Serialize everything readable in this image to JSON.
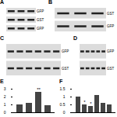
{
  "panel_letters": [
    "A",
    "B",
    "C",
    "D",
    "E",
    "F"
  ],
  "blots": [
    {
      "panel": "A",
      "rows": [
        "GFP",
        "GST",
        "GFP"
      ],
      "lanes": 3
    },
    {
      "panel": "B",
      "rows": [
        "GST",
        "GFP"
      ],
      "lanes": 3
    },
    {
      "panel": "C",
      "rows": [
        "GFP",
        "GST"
      ],
      "lanes": 6
    },
    {
      "panel": "D",
      "rows": [
        "GFP",
        "GST"
      ],
      "lanes": 5
    }
  ],
  "chart_data": [
    {
      "type": "bar",
      "panel": "E",
      "categories": [
        null,
        null,
        null,
        null
      ],
      "values": [
        1,
        1.2,
        2.6,
        0.9
      ],
      "color": "#444444",
      "ylim": [
        0,
        3
      ],
      "yticks": [
        0,
        1,
        2,
        3
      ],
      "tick_labels": "y",
      "annotations": [
        {
          "text": "**",
          "index": 2
        }
      ]
    },
    {
      "type": "bar",
      "panel": "F",
      "categories": [
        null,
        null,
        null,
        null,
        null,
        null
      ],
      "values": [
        1,
        0.5,
        0.4,
        1.1,
        0.6,
        0.5
      ],
      "color": "#444444",
      "ylim": [
        0,
        1.5
      ],
      "yticks": [
        0,
        0.5,
        1,
        1.5
      ],
      "tick_labels": "y",
      "annotations": [
        {
          "text": "*",
          "index": 1
        },
        {
          "text": "*",
          "index": 2
        }
      ]
    }
  ]
}
